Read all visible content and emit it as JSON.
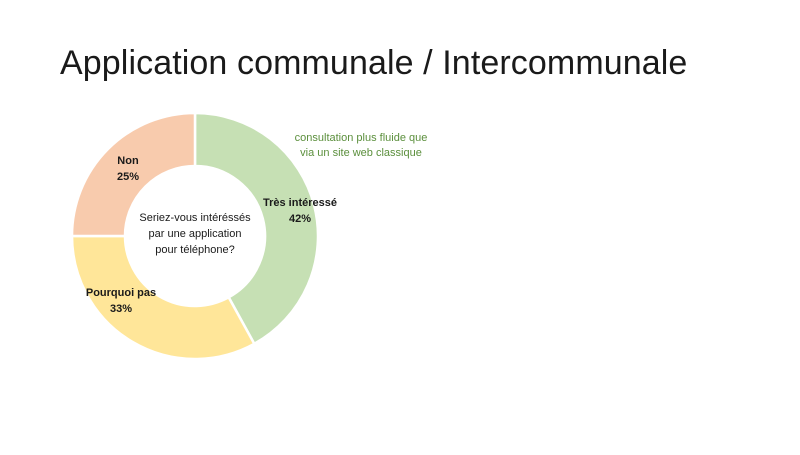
{
  "slide": {
    "title": "Application communale / Intercommunale"
  },
  "annotation": {
    "lines": [
      "consultation plus fluide que",
      "via un site web classique"
    ],
    "color": "#5b8f3c"
  },
  "chart_data": {
    "type": "pie",
    "donut": true,
    "center_text": [
      "Seriez-vous intéréssés",
      "par une application",
      "pour téléphone?"
    ],
    "categories": [
      "Très intéressé",
      "Pourquoi pas",
      "Non"
    ],
    "values": [
      42,
      33,
      25
    ],
    "value_labels": [
      "42%",
      "33%",
      "25%"
    ],
    "colors": [
      "#c6e0b4",
      "#ffe699",
      "#f8cbad"
    ],
    "legend": "none"
  }
}
